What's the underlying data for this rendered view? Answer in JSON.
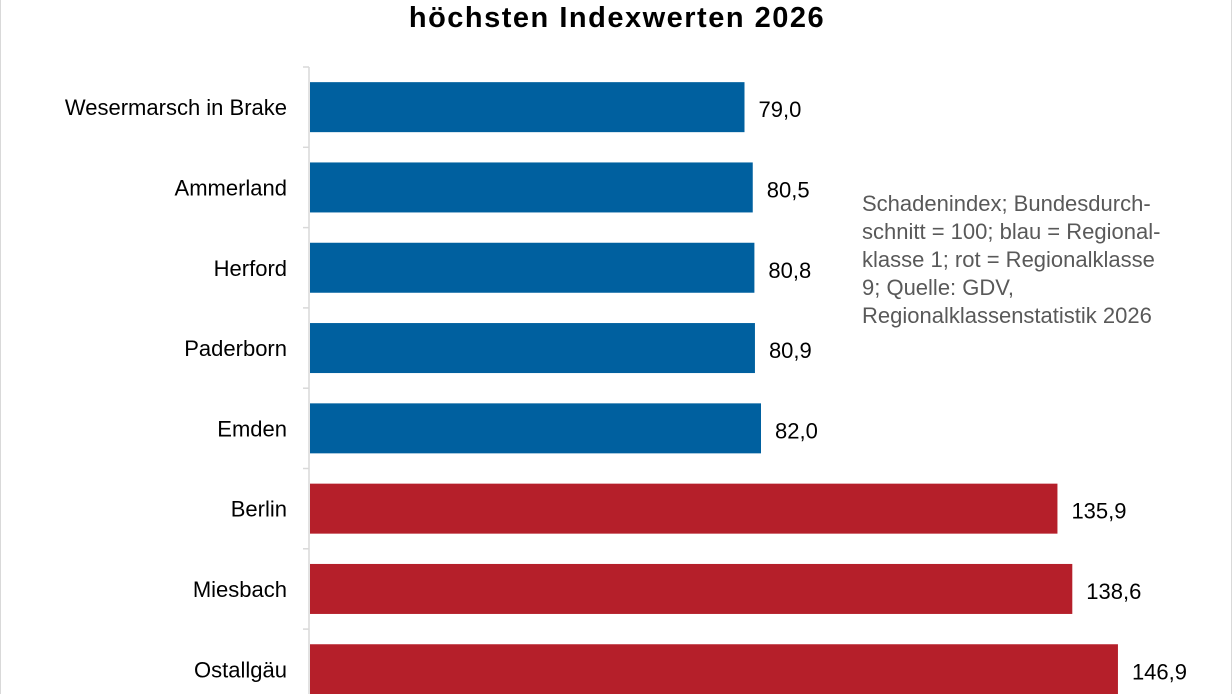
{
  "chart_data": {
    "type": "bar",
    "orientation": "horizontal",
    "title": "höchsten Indexwerten 2026",
    "categories": [
      "Wesermarsch in Brake",
      "Ammerland",
      "Herford",
      "Paderborn",
      "Emden",
      "Berlin",
      "Miesbach",
      "Ostallgäu"
    ],
    "values": [
      79.0,
      80.5,
      80.8,
      80.9,
      82.0,
      135.9,
      138.6,
      146.9
    ],
    "value_labels": [
      "79,0",
      "80,5",
      "80,8",
      "80,9",
      "82,0",
      "135,9",
      "138,6",
      "146,9"
    ],
    "bar_colors": [
      "#00609f",
      "#00609f",
      "#00609f",
      "#00609f",
      "#00609f",
      "#b51f2a",
      "#b51f2a",
      "#b51f2a"
    ],
    "xlim": [
      0,
      155
    ],
    "grid": false,
    "legend": "none",
    "annotation_lines": [
      "Schadenindex;  Bundesdurch-",
      "schnitt = 100; blau = Regional-",
      "klasse 1; rot  = Regionalklasse",
      "9; Quelle:  GDV,",
      "Regionalklassenstatistik 2026"
    ]
  }
}
